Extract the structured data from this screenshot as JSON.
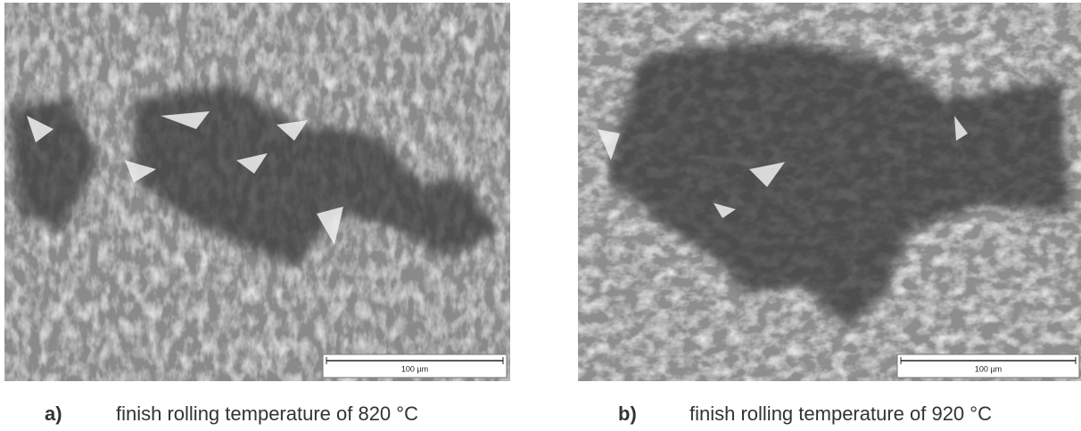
{
  "panels": [
    {
      "label": "a)",
      "caption": "finish rolling temperature of 820 °C",
      "scale_bar": "100 µm"
    },
    {
      "label": "b)",
      "caption": "finish rolling temperature of 920 °C",
      "scale_bar": "100 µm"
    }
  ]
}
